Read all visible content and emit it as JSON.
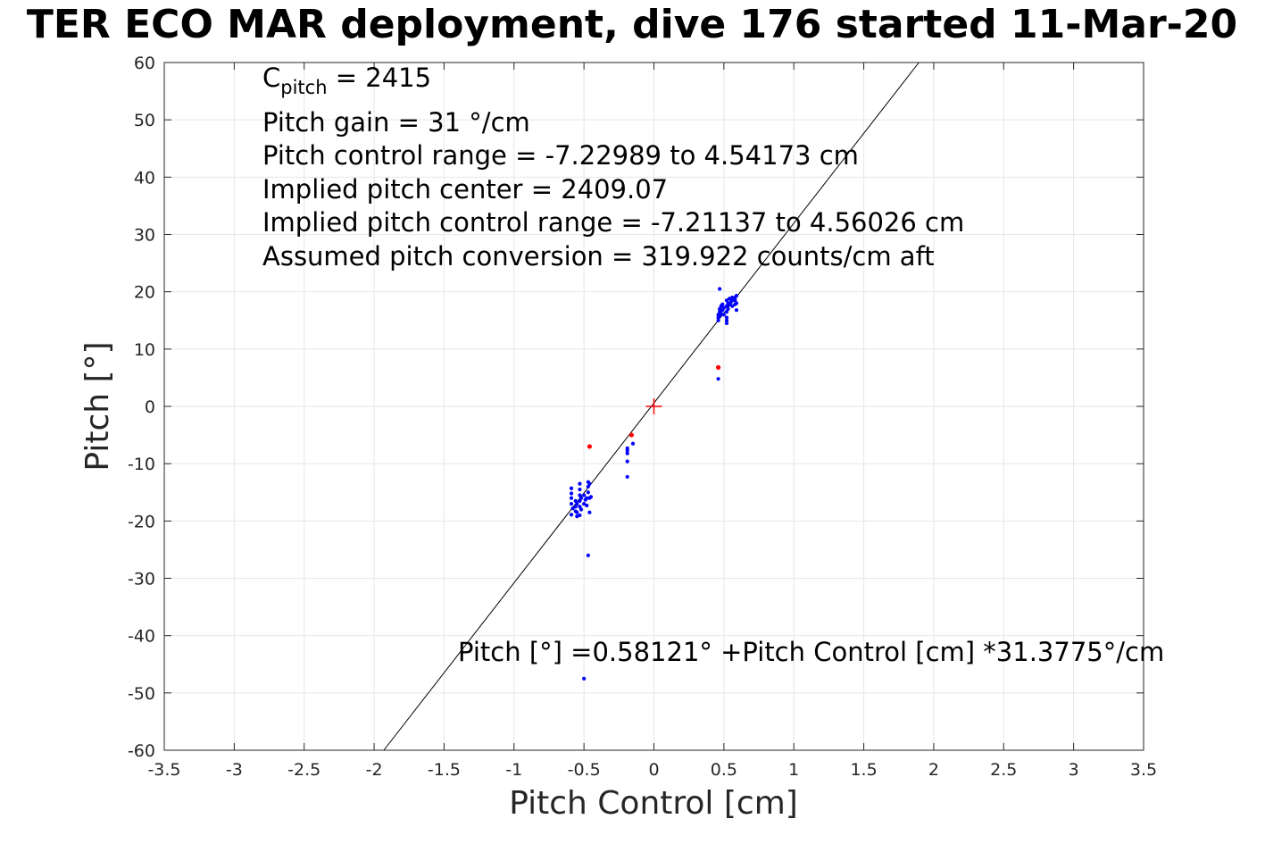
{
  "title": "TER ECO MAR deployment, dive 176 started 11-Mar-20",
  "annotations": {
    "c_pitch_symbol": "C",
    "c_pitch_sub": "pitch",
    "c_pitch_value": " = 2415",
    "gain": "Pitch gain = 31 °/cm",
    "control_range": "Pitch control range = -7.22989 to 4.54173 cm",
    "center": "Implied pitch center = 2409.07",
    "implied_range": "Implied pitch control range = -7.21137 to 4.56026 cm",
    "conversion": "Assumed pitch conversion = 319.922 counts/cm aft"
  },
  "equation": "Pitch [°] =0.58121° +Pitch Control [cm] *31.3775°/cm",
  "chart_data": {
    "type": "scatter",
    "xlabel": "Pitch Control [cm]",
    "ylabel": "Pitch [°]",
    "xlim": [
      -3.5,
      3.5
    ],
    "ylim": [
      -60,
      60
    ],
    "xticks": [
      -3.5,
      -3,
      -2.5,
      -2,
      -1.5,
      -1,
      -0.5,
      0,
      0.5,
      1,
      1.5,
      2,
      2.5,
      3,
      3.5
    ],
    "xtick_labels": [
      "-3.5",
      "-3",
      "-2.5",
      "-2",
      "-1.5",
      "-1",
      "-0.5",
      "0",
      "0.5",
      "1",
      "1.5",
      "2",
      "2.5",
      "3",
      "3.5"
    ],
    "yticks": [
      -60,
      -50,
      -40,
      -30,
      -20,
      -10,
      0,
      10,
      20,
      30,
      40,
      50,
      60
    ],
    "ytick_labels": [
      "-60",
      "-50",
      "-40",
      "-30",
      "-20",
      "-10",
      "0",
      "10",
      "20",
      "30",
      "40",
      "50",
      "60"
    ],
    "grid": true,
    "colors": {
      "blue": "#0000ff",
      "red": "#ff0000",
      "fit": "#000000",
      "grid": "#e6e6e6"
    },
    "fit_line": {
      "intercept": 0.58121,
      "slope": 31.3775
    },
    "center_marker": {
      "x": 0,
      "y": 0,
      "color": "#ff0000"
    },
    "series": [
      {
        "color": "#0000ff",
        "points": [
          [
            0.47,
            20.5
          ],
          [
            0.46,
            16.0
          ],
          [
            0.46,
            15.5
          ],
          [
            0.46,
            15.0
          ],
          [
            0.47,
            16.5
          ],
          [
            0.47,
            17.0
          ],
          [
            0.47,
            15.8
          ],
          [
            0.48,
            17.5
          ],
          [
            0.48,
            16.2
          ],
          [
            0.49,
            17.8
          ],
          [
            0.49,
            16.8
          ],
          [
            0.5,
            16.0
          ],
          [
            0.5,
            17.2
          ],
          [
            0.52,
            18.5
          ],
          [
            0.52,
            17.5
          ],
          [
            0.52,
            16.5
          ],
          [
            0.52,
            15.5
          ],
          [
            0.52,
            15.0
          ],
          [
            0.52,
            14.5
          ],
          [
            0.53,
            18.0
          ],
          [
            0.53,
            17.0
          ],
          [
            0.54,
            18.8
          ],
          [
            0.54,
            17.8
          ],
          [
            0.55,
            18.2
          ],
          [
            0.56,
            19.0
          ],
          [
            0.56,
            18.5
          ],
          [
            0.56,
            17.5
          ],
          [
            0.58,
            19.0
          ],
          [
            0.58,
            18.5
          ],
          [
            0.58,
            17.8
          ],
          [
            0.59,
            19.3
          ],
          [
            0.59,
            18.0
          ],
          [
            0.59,
            16.8
          ],
          [
            0.46,
            4.8
          ],
          [
            -0.15,
            -6.5
          ],
          [
            -0.19,
            -7.3
          ],
          [
            -0.19,
            -7.7
          ],
          [
            -0.19,
            -8.2
          ],
          [
            -0.19,
            -9.6
          ],
          [
            -0.19,
            -12.3
          ],
          [
            -0.59,
            -14.3
          ],
          [
            -0.59,
            -15.2
          ],
          [
            -0.59,
            -16.0
          ],
          [
            -0.59,
            -17.0
          ],
          [
            -0.59,
            -18.9
          ],
          [
            -0.58,
            -17.8
          ],
          [
            -0.56,
            -16.5
          ],
          [
            -0.56,
            -17.5
          ],
          [
            -0.56,
            -18.3
          ],
          [
            -0.55,
            -17.0
          ],
          [
            -0.55,
            -18.5
          ],
          [
            -0.55,
            -19.2
          ],
          [
            -0.53,
            -13.5
          ],
          [
            -0.53,
            -14.5
          ],
          [
            -0.53,
            -15.5
          ],
          [
            -0.53,
            -16.5
          ],
          [
            -0.53,
            -17.5
          ],
          [
            -0.53,
            -19.0
          ],
          [
            -0.52,
            -16.0
          ],
          [
            -0.52,
            -18.0
          ],
          [
            -0.5,
            -15.5
          ],
          [
            -0.5,
            -17.0
          ],
          [
            -0.49,
            -16.3
          ],
          [
            -0.48,
            -16.0
          ],
          [
            -0.48,
            -17.3
          ],
          [
            -0.47,
            -13.2
          ],
          [
            -0.47,
            -14.0
          ],
          [
            -0.47,
            -15.0
          ],
          [
            -0.46,
            -13.5
          ],
          [
            -0.46,
            -16.0
          ],
          [
            -0.46,
            -18.5
          ],
          [
            -0.45,
            -15.8
          ],
          [
            -0.47,
            -26.0
          ],
          [
            -0.5,
            -47.5
          ]
        ]
      },
      {
        "color": "#ff0000",
        "points": [
          [
            0.46,
            6.8
          ],
          [
            -0.46,
            -7.0
          ],
          [
            -0.16,
            -5.0
          ]
        ]
      }
    ]
  }
}
